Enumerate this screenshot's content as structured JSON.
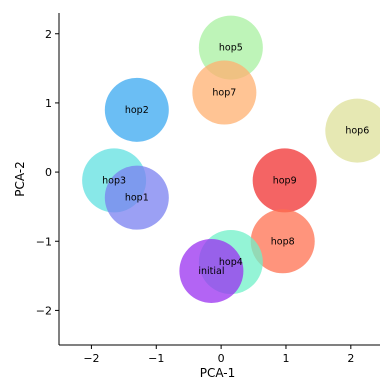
{
  "chart_data": {
    "type": "scatter",
    "xlabel": "PCA-1",
    "ylabel": "PCA-2",
    "xlim": [
      -2.5,
      2.45
    ],
    "ylim": [
      -2.5,
      2.3
    ],
    "xticks": [
      -2,
      -1,
      0,
      1,
      2
    ],
    "yticks": [
      -2,
      -1,
      0,
      1,
      2
    ],
    "grid": false,
    "points": [
      {
        "label": "hop5",
        "x": 0.15,
        "y": 1.8,
        "color": "#a8f0a0"
      },
      {
        "label": "hop7",
        "x": 0.05,
        "y": 1.15,
        "color": "#ffb070"
      },
      {
        "label": "hop2",
        "x": -1.3,
        "y": 0.9,
        "color": "#3aa8f0"
      },
      {
        "label": "hop6",
        "x": 2.1,
        "y": 0.6,
        "color": "#dde09a"
      },
      {
        "label": "hop3",
        "x": -1.65,
        "y": -0.12,
        "color": "#60e0e0"
      },
      {
        "label": "hop1",
        "x": -1.3,
        "y": -0.37,
        "color": "#7a80f0"
      },
      {
        "label": "hop9",
        "x": 0.98,
        "y": -0.12,
        "color": "#f03030"
      },
      {
        "label": "hop8",
        "x": 0.95,
        "y": -1.0,
        "color": "#ff7050"
      },
      {
        "label": "hop4",
        "x": 0.15,
        "y": -1.3,
        "color": "#70f0c8"
      },
      {
        "label": "initial",
        "x": -0.15,
        "y": -1.43,
        "color": "#9a30f0"
      }
    ]
  }
}
